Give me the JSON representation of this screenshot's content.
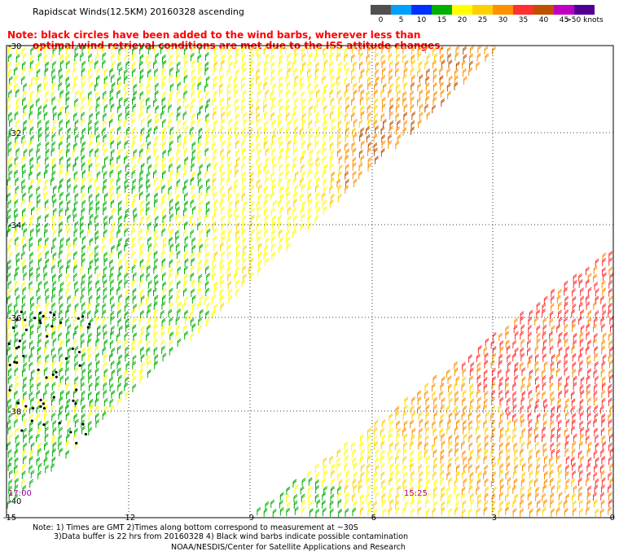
{
  "title": "Rapidscat Winds(12.5KM) 20160328 ascending",
  "note_line1": "Note: black circles have been added to the wind barbs, wherever less than",
  "note_line2": "optimal wind retrieval conditions are met due to the ISS attitude changes.",
  "colorbar": {
    "labels": [
      "0",
      "5",
      "10",
      "15",
      "20",
      "25",
      "30",
      "35",
      "40",
      "45",
      ">50 knots"
    ],
    "colors": [
      "#505050",
      "#00a0ff",
      "#0030ff",
      "#00b000",
      "#ffff00",
      "#ffd000",
      "#ff9000",
      "#ff3030",
      "#c05000",
      "#c000c0",
      "#500090"
    ]
  },
  "axes": {
    "lat_labels": [
      "-30",
      "-32",
      "-34",
      "-36",
      "-38",
      "-40"
    ],
    "lon_labels": [
      "-15",
      "-12",
      "-9",
      "-6",
      "-3",
      "0"
    ]
  },
  "time_labels": [
    "17:00",
    "15:25"
  ],
  "footer_line1": "Note: 1) Times are GMT 2)Times along bottom correspond to measurement at ~30S",
  "footer_line2": "3)Data buffer is 22 hrs from 20160328 4) Black wind barbs indicate possible contamination",
  "credit": "NOAA/NESDIS/Center for Satellite Applications and Research"
}
